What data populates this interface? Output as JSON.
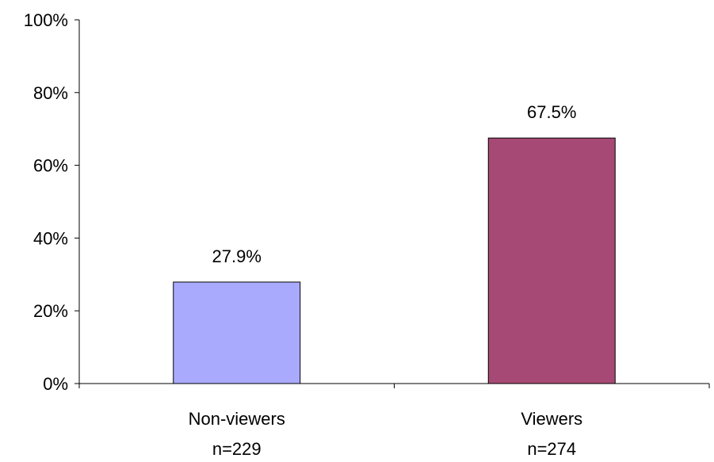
{
  "chart_data": {
    "type": "bar",
    "title": "",
    "xlabel": "",
    "ylabel": "",
    "categories": [
      "Non-viewers",
      "Viewers"
    ],
    "category_sublabels": [
      "n=229",
      "n=274"
    ],
    "values": [
      27.9,
      67.5
    ],
    "value_labels": [
      "27.9%",
      "67.5%"
    ],
    "bar_colors": [
      "#A9AAFD",
      "#A64A75"
    ],
    "ylim": [
      0,
      100
    ],
    "yticks": [
      0,
      20,
      40,
      60,
      80,
      100
    ],
    "ytick_labels": [
      "0%",
      "20%",
      "40%",
      "60%",
      "80%",
      "100%"
    ],
    "grid": false,
    "legend": "none"
  }
}
